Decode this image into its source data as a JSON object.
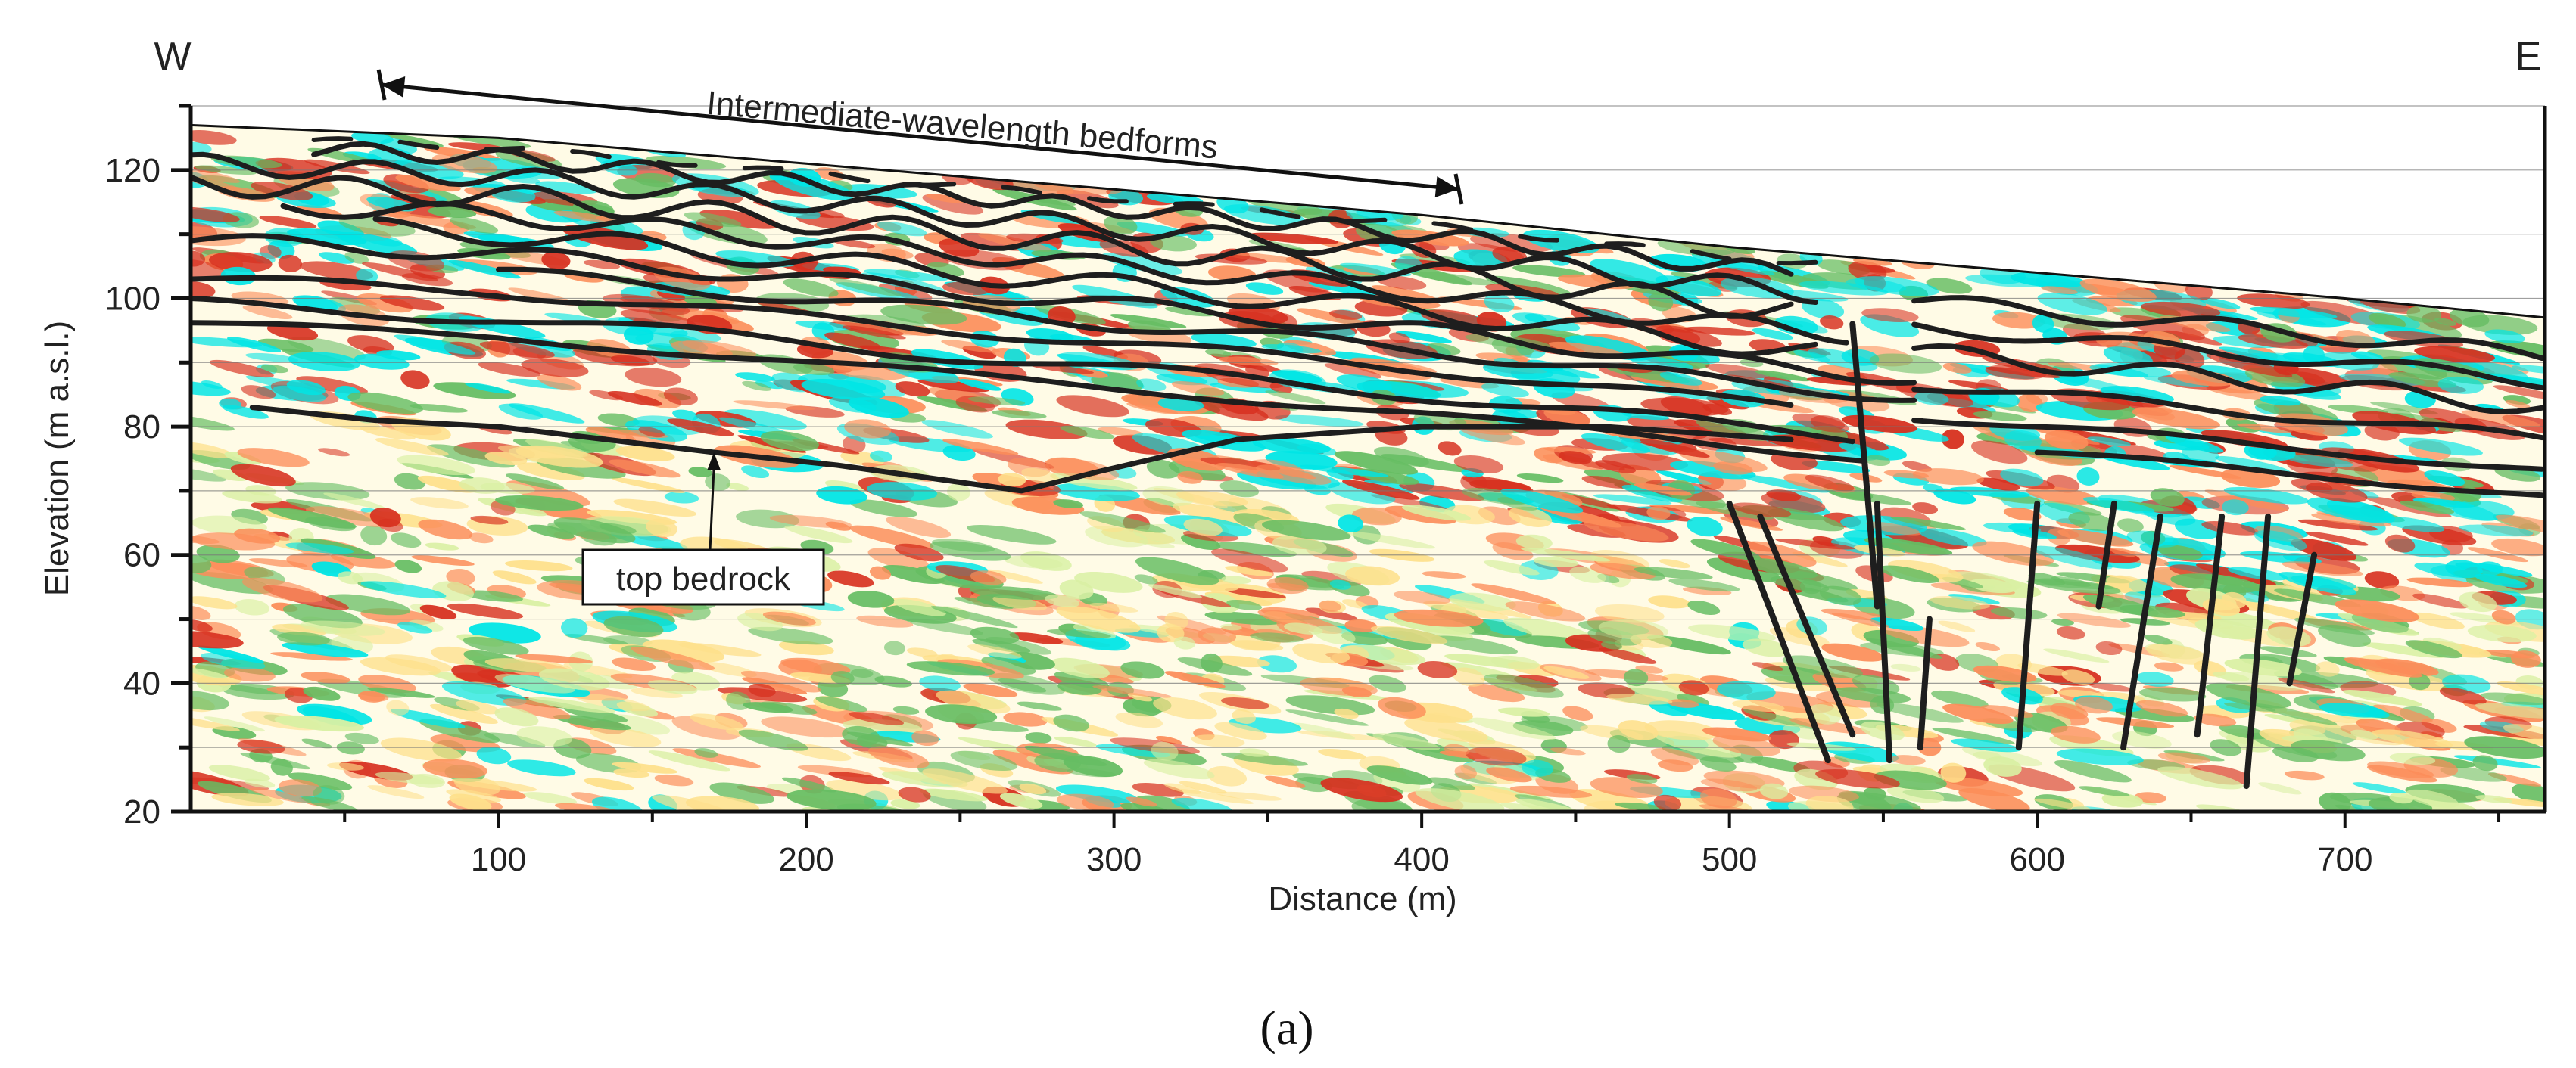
{
  "chart_data": {
    "type": "image-section",
    "title": "",
    "xlabel": "Distance (m)",
    "ylabel": "Elevation (m a.s.l.)",
    "xlim": [
      0,
      765
    ],
    "ylim": [
      20,
      130
    ],
    "x_ticks": [
      100,
      200,
      300,
      400,
      500,
      600,
      700
    ],
    "y_ticks": [
      20,
      40,
      60,
      80,
      100,
      120
    ],
    "gridlines_y": [
      30,
      40,
      50,
      60,
      70,
      80,
      90,
      100,
      110,
      120,
      130
    ],
    "direction_labels": {
      "left": "W",
      "right": "E"
    },
    "panel_label": "(a)",
    "annotations": [
      {
        "text": "Intermediate-wavelength bedforms",
        "type": "double-arrow",
        "x_start": 62,
        "x_end": 412,
        "y_start": 132,
        "y_end": 122
      },
      {
        "text": "top bedrock",
        "type": "label-with-arrow",
        "x": 172,
        "y": 57,
        "arrow_to": [
          170,
          76
        ]
      }
    ],
    "surface_profile": [
      [
        0,
        127
      ],
      [
        100,
        125
      ],
      [
        200,
        121
      ],
      [
        300,
        117
      ],
      [
        400,
        113
      ],
      [
        500,
        108
      ],
      [
        600,
        104
      ],
      [
        700,
        100
      ],
      [
        765,
        97
      ]
    ],
    "reflector_lines_interpreted": true,
    "fault_lines_interpreted": true,
    "colormap": [
      "#d7301f",
      "#fc8d59",
      "#fee08b",
      "#ffffbf",
      "#d9f0a3",
      "#66bd63",
      "#00e5e5"
    ]
  }
}
